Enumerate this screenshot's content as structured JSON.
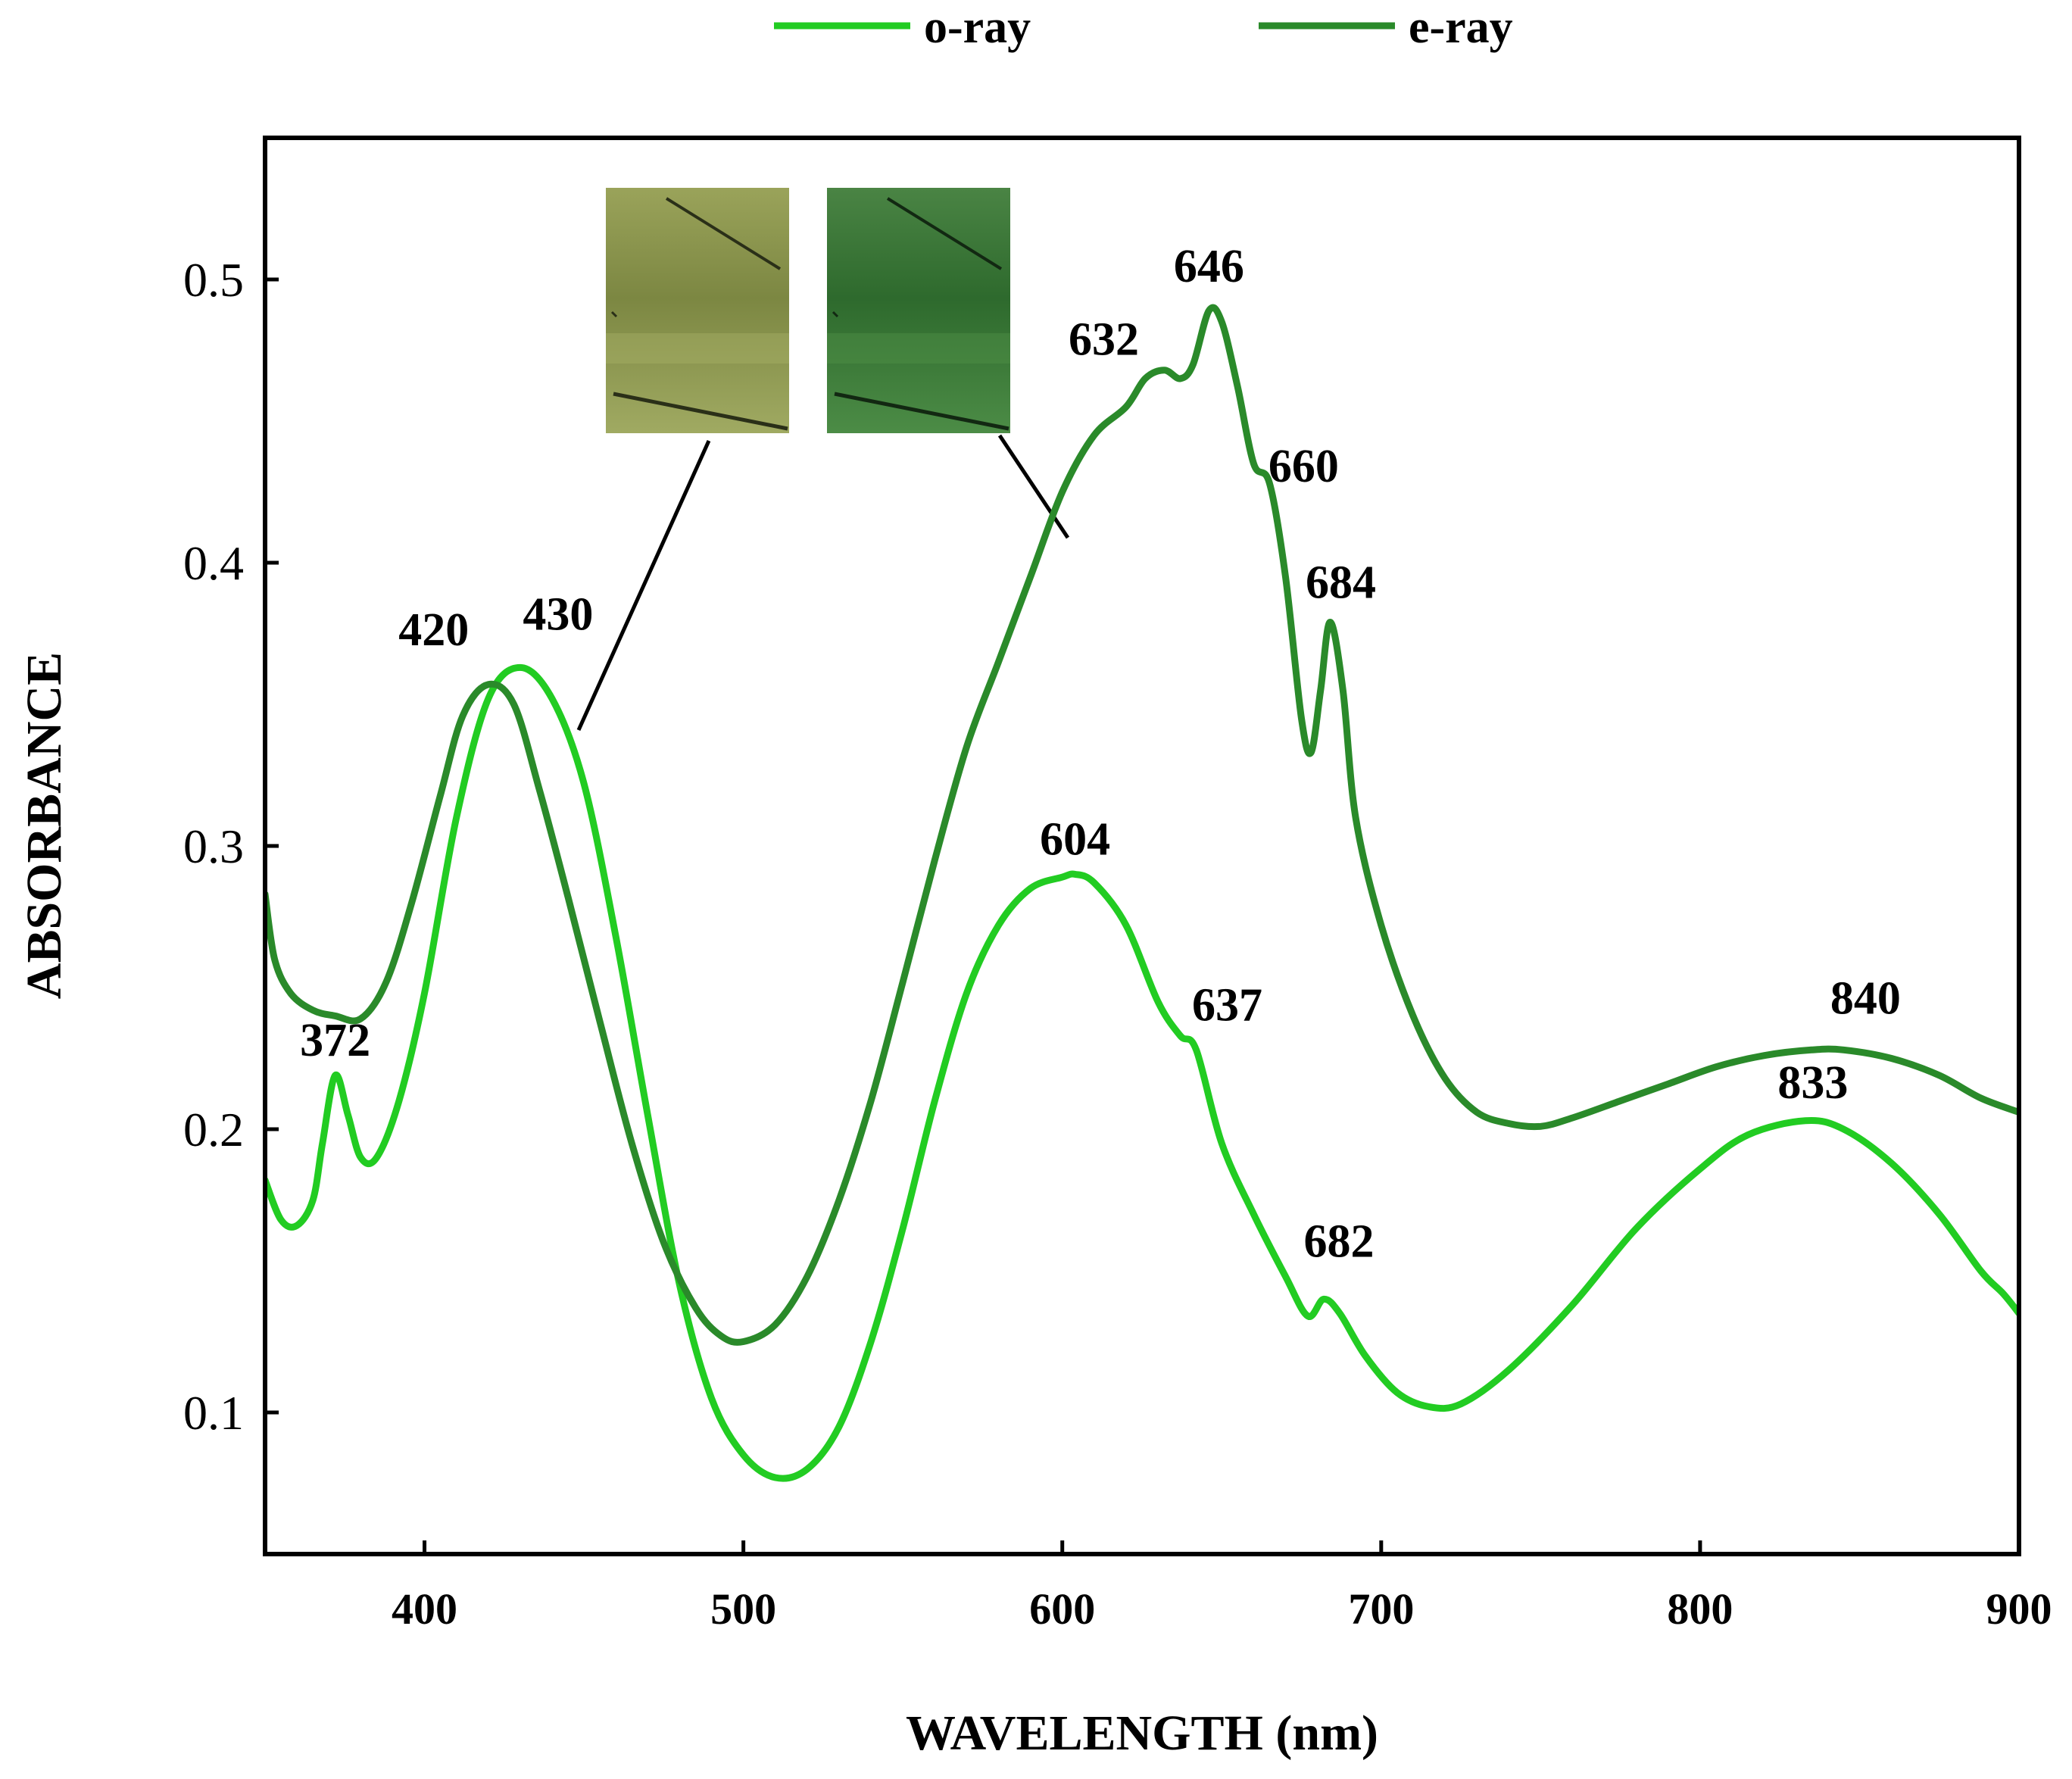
{
  "chart_data": {
    "type": "line",
    "title": "",
    "xlabel": "WAVELENGTH (nm)",
    "ylabel": "ABSORBANCE",
    "xlim": [
      350,
      900
    ],
    "ylim": [
      0.05,
      0.55
    ],
    "x_ticks": [
      400,
      500,
      600,
      700,
      800,
      900
    ],
    "x_tick_labels": [
      "400",
      "500",
      "600",
      "700",
      "800",
      "900"
    ],
    "y_ticks": [
      0.1,
      0.2,
      0.3,
      0.4,
      0.5
    ],
    "y_tick_labels": [
      "0.1",
      "0.2",
      "0.3",
      "0.4",
      "0.5"
    ],
    "grid": false,
    "legend_position": "top-center",
    "series": [
      {
        "name": "o-ray",
        "color": "#22cc22",
        "points": [
          [
            350,
            0.182
          ],
          [
            355,
            0.168
          ],
          [
            360,
            0.166
          ],
          [
            365,
            0.175
          ],
          [
            368,
            0.195
          ],
          [
            372,
            0.219
          ],
          [
            376,
            0.205
          ],
          [
            380,
            0.19
          ],
          [
            385,
            0.19
          ],
          [
            392,
            0.21
          ],
          [
            400,
            0.248
          ],
          [
            410,
            0.31
          ],
          [
            420,
            0.352
          ],
          [
            430,
            0.363
          ],
          [
            440,
            0.352
          ],
          [
            450,
            0.322
          ],
          [
            460,
            0.268
          ],
          [
            470,
            0.205
          ],
          [
            480,
            0.145
          ],
          [
            490,
            0.105
          ],
          [
            500,
            0.085
          ],
          [
            510,
            0.077
          ],
          [
            520,
            0.08
          ],
          [
            530,
            0.095
          ],
          [
            540,
            0.125
          ],
          [
            550,
            0.165
          ],
          [
            560,
            0.21
          ],
          [
            570,
            0.248
          ],
          [
            580,
            0.272
          ],
          [
            590,
            0.285
          ],
          [
            600,
            0.289
          ],
          [
            604,
            0.29
          ],
          [
            610,
            0.287
          ],
          [
            620,
            0.272
          ],
          [
            630,
            0.245
          ],
          [
            637,
            0.233
          ],
          [
            642,
            0.228
          ],
          [
            650,
            0.195
          ],
          [
            660,
            0.17
          ],
          [
            670,
            0.148
          ],
          [
            677,
            0.134
          ],
          [
            682,
            0.14
          ],
          [
            687,
            0.135
          ],
          [
            695,
            0.12
          ],
          [
            705,
            0.107
          ],
          [
            715,
            0.102
          ],
          [
            725,
            0.103
          ],
          [
            740,
            0.115
          ],
          [
            760,
            0.138
          ],
          [
            780,
            0.165
          ],
          [
            800,
            0.186
          ],
          [
            815,
            0.198
          ],
          [
            833,
            0.203
          ],
          [
            845,
            0.2
          ],
          [
            860,
            0.188
          ],
          [
            875,
            0.17
          ],
          [
            888,
            0.15
          ],
          [
            895,
            0.142
          ],
          [
            900,
            0.135
          ]
        ]
      },
      {
        "name": "e-ray",
        "color": "#2a8a2a",
        "points": [
          [
            350,
            0.283
          ],
          [
            353,
            0.26
          ],
          [
            358,
            0.248
          ],
          [
            365,
            0.242
          ],
          [
            372,
            0.24
          ],
          [
            380,
            0.239
          ],
          [
            388,
            0.252
          ],
          [
            396,
            0.28
          ],
          [
            405,
            0.318
          ],
          [
            412,
            0.346
          ],
          [
            420,
            0.357
          ],
          [
            428,
            0.35
          ],
          [
            436,
            0.32
          ],
          [
            445,
            0.282
          ],
          [
            455,
            0.238
          ],
          [
            465,
            0.195
          ],
          [
            475,
            0.16
          ],
          [
            485,
            0.137
          ],
          [
            493,
            0.127
          ],
          [
            500,
            0.125
          ],
          [
            510,
            0.131
          ],
          [
            520,
            0.148
          ],
          [
            530,
            0.175
          ],
          [
            540,
            0.21
          ],
          [
            550,
            0.252
          ],
          [
            560,
            0.295
          ],
          [
            570,
            0.335
          ],
          [
            580,
            0.365
          ],
          [
            590,
            0.395
          ],
          [
            600,
            0.425
          ],
          [
            610,
            0.445
          ],
          [
            620,
            0.455
          ],
          [
            626,
            0.465
          ],
          [
            632,
            0.468
          ],
          [
            637,
            0.465
          ],
          [
            641,
            0.47
          ],
          [
            646,
            0.489
          ],
          [
            650,
            0.485
          ],
          [
            655,
            0.462
          ],
          [
            660,
            0.435
          ],
          [
            665,
            0.428
          ],
          [
            670,
            0.395
          ],
          [
            675,
            0.345
          ],
          [
            678,
            0.333
          ],
          [
            681,
            0.355
          ],
          [
            684,
            0.379
          ],
          [
            688,
            0.355
          ],
          [
            692,
            0.31
          ],
          [
            700,
            0.272
          ],
          [
            710,
            0.24
          ],
          [
            720,
            0.218
          ],
          [
            730,
            0.206
          ],
          [
            740,
            0.202
          ],
          [
            750,
            0.201
          ],
          [
            760,
            0.204
          ],
          [
            775,
            0.21
          ],
          [
            790,
            0.216
          ],
          [
            805,
            0.222
          ],
          [
            820,
            0.226
          ],
          [
            835,
            0.228
          ],
          [
            845,
            0.228
          ],
          [
            860,
            0.225
          ],
          [
            875,
            0.219
          ],
          [
            888,
            0.211
          ],
          [
            900,
            0.206
          ]
        ]
      }
    ],
    "annotations": [
      {
        "text": "372",
        "x": 372,
        "y": 0.219,
        "series": "o-ray"
      },
      {
        "text": "420",
        "x": 420,
        "y": 0.357,
        "series": "e-ray"
      },
      {
        "text": "430",
        "x": 430,
        "y": 0.363,
        "series": "o-ray"
      },
      {
        "text": "604",
        "x": 604,
        "y": 0.29,
        "series": "o-ray"
      },
      {
        "text": "637",
        "x": 637,
        "y": 0.233,
        "series": "o-ray"
      },
      {
        "text": "682",
        "x": 682,
        "y": 0.14,
        "series": "o-ray"
      },
      {
        "text": "833",
        "x": 833,
        "y": 0.203,
        "series": "o-ray"
      },
      {
        "text": "632",
        "x": 632,
        "y": 0.468,
        "series": "e-ray"
      },
      {
        "text": "646",
        "x": 646,
        "y": 0.489,
        "series": "e-ray"
      },
      {
        "text": "660",
        "x": 660,
        "y": 0.435,
        "series": "e-ray"
      },
      {
        "text": "684",
        "x": 684,
        "y": 0.379,
        "series": "e-ray"
      },
      {
        "text": "840",
        "x": 840,
        "y": 0.228,
        "series": "e-ray"
      }
    ],
    "insets": [
      {
        "name": "o-ray-photo",
        "series": "o-ray",
        "colors": [
          "#8f9a52",
          "#7d8a45",
          "#9aa55c"
        ]
      },
      {
        "name": "e-ray-photo",
        "series": "e-ray",
        "colors": [
          "#3f7a3a",
          "#2f6a2e",
          "#4a8a44"
        ]
      }
    ]
  }
}
